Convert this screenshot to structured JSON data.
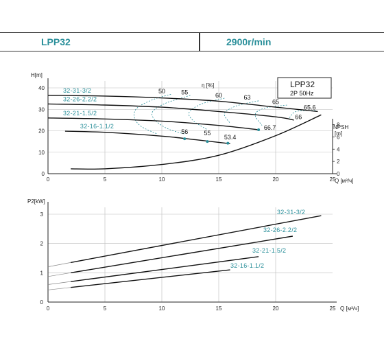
{
  "header": {
    "model": "LPP32",
    "speed": "2900r/min"
  },
  "chart_data": [
    {
      "type": "line",
      "title": "LPP32",
      "subtitle": "2P 50Hz",
      "xlabel": "Q [м³/ч]",
      "ylabel": "H[m]",
      "y2label": "NPSH [m]",
      "eff_label": "η [%]",
      "xlim": [
        0,
        25
      ],
      "ylim": [
        0,
        40
      ],
      "y2lim": [
        0,
        14
      ],
      "xticks": [
        "0",
        "5",
        "10",
        "15",
        "20",
        "25"
      ],
      "yticks": [
        "0",
        "10",
        "20",
        "30",
        "40"
      ],
      "y2ticks": [
        "0",
        "2",
        "4",
        "6",
        "8"
      ],
      "series": [
        {
          "name": "32-31-3/2",
          "x": [
            0,
            5,
            10,
            15,
            20,
            23.7
          ],
          "y": [
            36.5,
            36.2,
            35.3,
            33.8,
            31.0,
            29.0
          ]
        },
        {
          "name": "32-26-2.2/2",
          "x": [
            0,
            5,
            10,
            15,
            20,
            21.6
          ],
          "y": [
            32.5,
            32.0,
            31.0,
            29.0,
            26.5,
            25.0
          ]
        },
        {
          "name": "32-21-1.5/2",
          "x": [
            0,
            5,
            10,
            15,
            18.5
          ],
          "y": [
            26.0,
            25.5,
            24.5,
            22.5,
            20.5
          ]
        },
        {
          "name": "32-16-1.1/2",
          "x": [
            1.5,
            5,
            10,
            13,
            16
          ],
          "y": [
            19.8,
            19.3,
            17.5,
            15.8,
            14.0
          ]
        }
      ],
      "npsh": {
        "x": [
          2,
          5,
          10,
          15,
          20,
          24
        ],
        "y": [
          0.8,
          0.8,
          1.5,
          3.0,
          6.2,
          9.6
        ]
      },
      "efficiency_labels": [
        {
          "label": "50",
          "x": 10.0,
          "y": 37.5
        },
        {
          "label": "55",
          "x": 12.0,
          "y": 37.0
        },
        {
          "label": "60",
          "x": 15.0,
          "y": 35.5
        },
        {
          "label": "63",
          "x": 17.5,
          "y": 34.5
        },
        {
          "label": "65",
          "x": 20.0,
          "y": 32.5
        },
        {
          "label": "65.6",
          "x": 23.0,
          "y": 30.0
        },
        {
          "label": "66",
          "x": 22.0,
          "y": 25.5
        },
        {
          "label": "66.7",
          "x": 19.5,
          "y": 20.5
        },
        {
          "label": "56",
          "x": 12.0,
          "y": 18.5
        },
        {
          "label": "55",
          "x": 14.0,
          "y": 18.0
        },
        {
          "label": "53.4",
          "x": 16.0,
          "y": 16.0
        }
      ],
      "grid": true
    },
    {
      "type": "line",
      "ylabel": "P2[kW]",
      "xlabel": "Q [м³/ч]",
      "xlim": [
        0,
        25
      ],
      "ylim": [
        0,
        3
      ],
      "xticks": [
        "0",
        "5",
        "10",
        "15",
        "20",
        "25"
      ],
      "yticks": [
        "0",
        "1",
        "2",
        "3"
      ],
      "series": [
        {
          "name": "32-31-3/2",
          "x": [
            2,
            24
          ],
          "y": [
            1.35,
            2.95
          ]
        },
        {
          "name": "32-26-2.2/2",
          "x": [
            2,
            21.5
          ],
          "y": [
            1.0,
            2.25
          ]
        },
        {
          "name": "32-21-1.5/2",
          "x": [
            2,
            18.5
          ],
          "y": [
            0.7,
            1.55
          ]
        },
        {
          "name": "32-16-1.1/2",
          "x": [
            2,
            16
          ],
          "y": [
            0.5,
            1.1
          ]
        }
      ],
      "grid": true
    }
  ]
}
